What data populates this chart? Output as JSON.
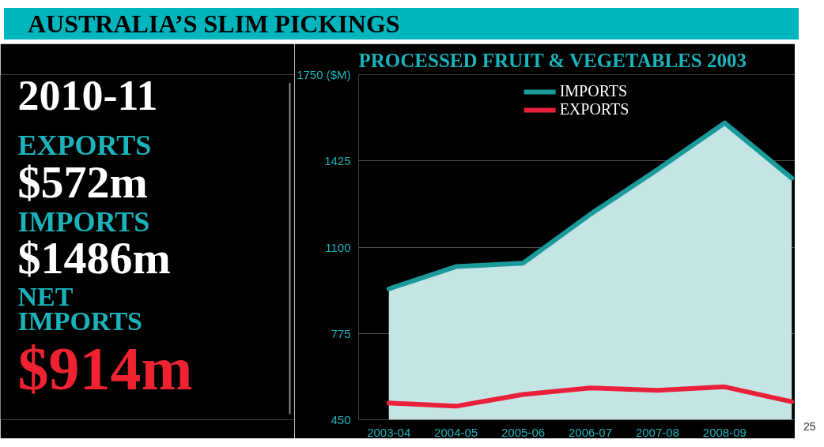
{
  "chart_data": [
    {
      "type": "other",
      "title": "AUSTRALIA’S SLIM PICKINGS",
      "annotations": [
        "2010-11",
        "EXPORTS",
        "$572m",
        "IMPORTS",
        "$1486m",
        "NET\nIMPORTS",
        "$914m"
      ]
    },
    {
      "type": "line",
      "title": "PROCESSED FRUIT & VEGETABLES 2003",
      "categories": [
        "2003-04",
        "2004-05",
        "2005-06",
        "2006-07",
        "2007-08",
        "2008-09",
        null
      ],
      "series": [
        {
          "name": "IMPORTS",
          "type": "area",
          "color": "#1a9a9a",
          "values": [
            943,
            1027,
            1040,
            1224,
            1392,
            1568,
            1360
          ]
        },
        {
          "name": "EXPORTS",
          "color": "#e8203a",
          "values": [
            513,
            501,
            545,
            570,
            561,
            574,
            518
          ]
        }
      ],
      "ylim": [
        450,
        1750
      ],
      "yticks": [
        450,
        775,
        1100,
        1425,
        {
          "value": 1750,
          "label": "1750 ($M)"
        }
      ],
      "grid": "y",
      "legend": "top",
      "line_style": "solid",
      "marker": "none",
      "annotations": [
        "25"
      ]
    }
  ]
}
